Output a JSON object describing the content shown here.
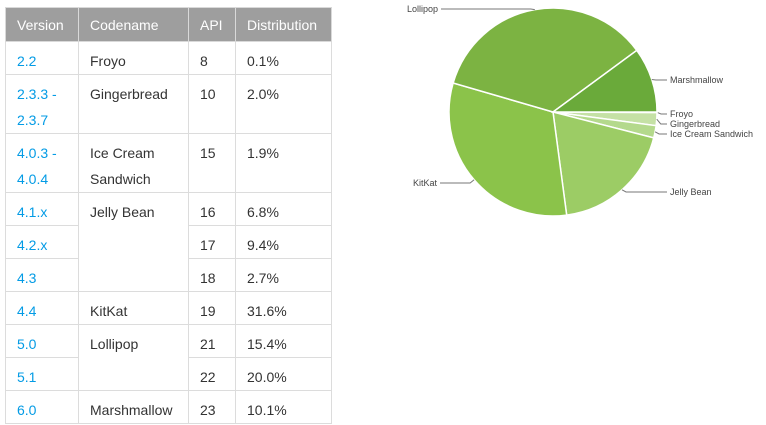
{
  "table": {
    "headers": [
      "Version",
      "Codename",
      "API",
      "Distribution"
    ],
    "rows": [
      {
        "version": "2.2",
        "codename": "Froyo",
        "api": "8",
        "distribution": "0.1%"
      },
      {
        "version": "2.3.3 -\n2.3.7",
        "codename": "Gingerbread",
        "api": "10",
        "distribution": "2.0%"
      },
      {
        "version": "4.0.3 -\n4.0.4",
        "codename": "Ice Cream\nSandwich",
        "api": "15",
        "distribution": "1.9%"
      },
      {
        "version": "4.1.x",
        "codename": "Jelly Bean",
        "api": "16",
        "distribution": "6.8%"
      },
      {
        "version": "4.2.x",
        "codename": "",
        "api": "17",
        "distribution": "9.4%"
      },
      {
        "version": "4.3",
        "codename": "",
        "api": "18",
        "distribution": "2.7%"
      },
      {
        "version": "4.4",
        "codename": "KitKat",
        "api": "19",
        "distribution": "31.6%"
      },
      {
        "version": "5.0",
        "codename": "Lollipop",
        "api": "21",
        "distribution": "15.4%"
      },
      {
        "version": "5.1",
        "codename": "",
        "api": "22",
        "distribution": "20.0%"
      },
      {
        "version": "6.0",
        "codename": "Marshmallow",
        "api": "23",
        "distribution": "10.1%"
      }
    ]
  },
  "chart_data": {
    "type": "pie",
    "title": "",
    "slices": [
      {
        "label": "Froyo",
        "value": 0.1,
        "color": "#d9ecc4"
      },
      {
        "label": "Gingerbread",
        "value": 2.0,
        "color": "#c5e1a5"
      },
      {
        "label": "Ice Cream Sandwich",
        "value": 1.9,
        "color": "#b4d98c"
      },
      {
        "label": "Jelly Bean",
        "value": 18.9,
        "color": "#9ccc65"
      },
      {
        "label": "KitKat",
        "value": 31.6,
        "color": "#8bc34a"
      },
      {
        "label": "Lollipop",
        "value": 35.4,
        "color": "#7cb342"
      },
      {
        "label": "Marshmallow",
        "value": 10.1,
        "color": "#6aaa3a"
      }
    ],
    "legend": "leader-line labels around the pie"
  }
}
